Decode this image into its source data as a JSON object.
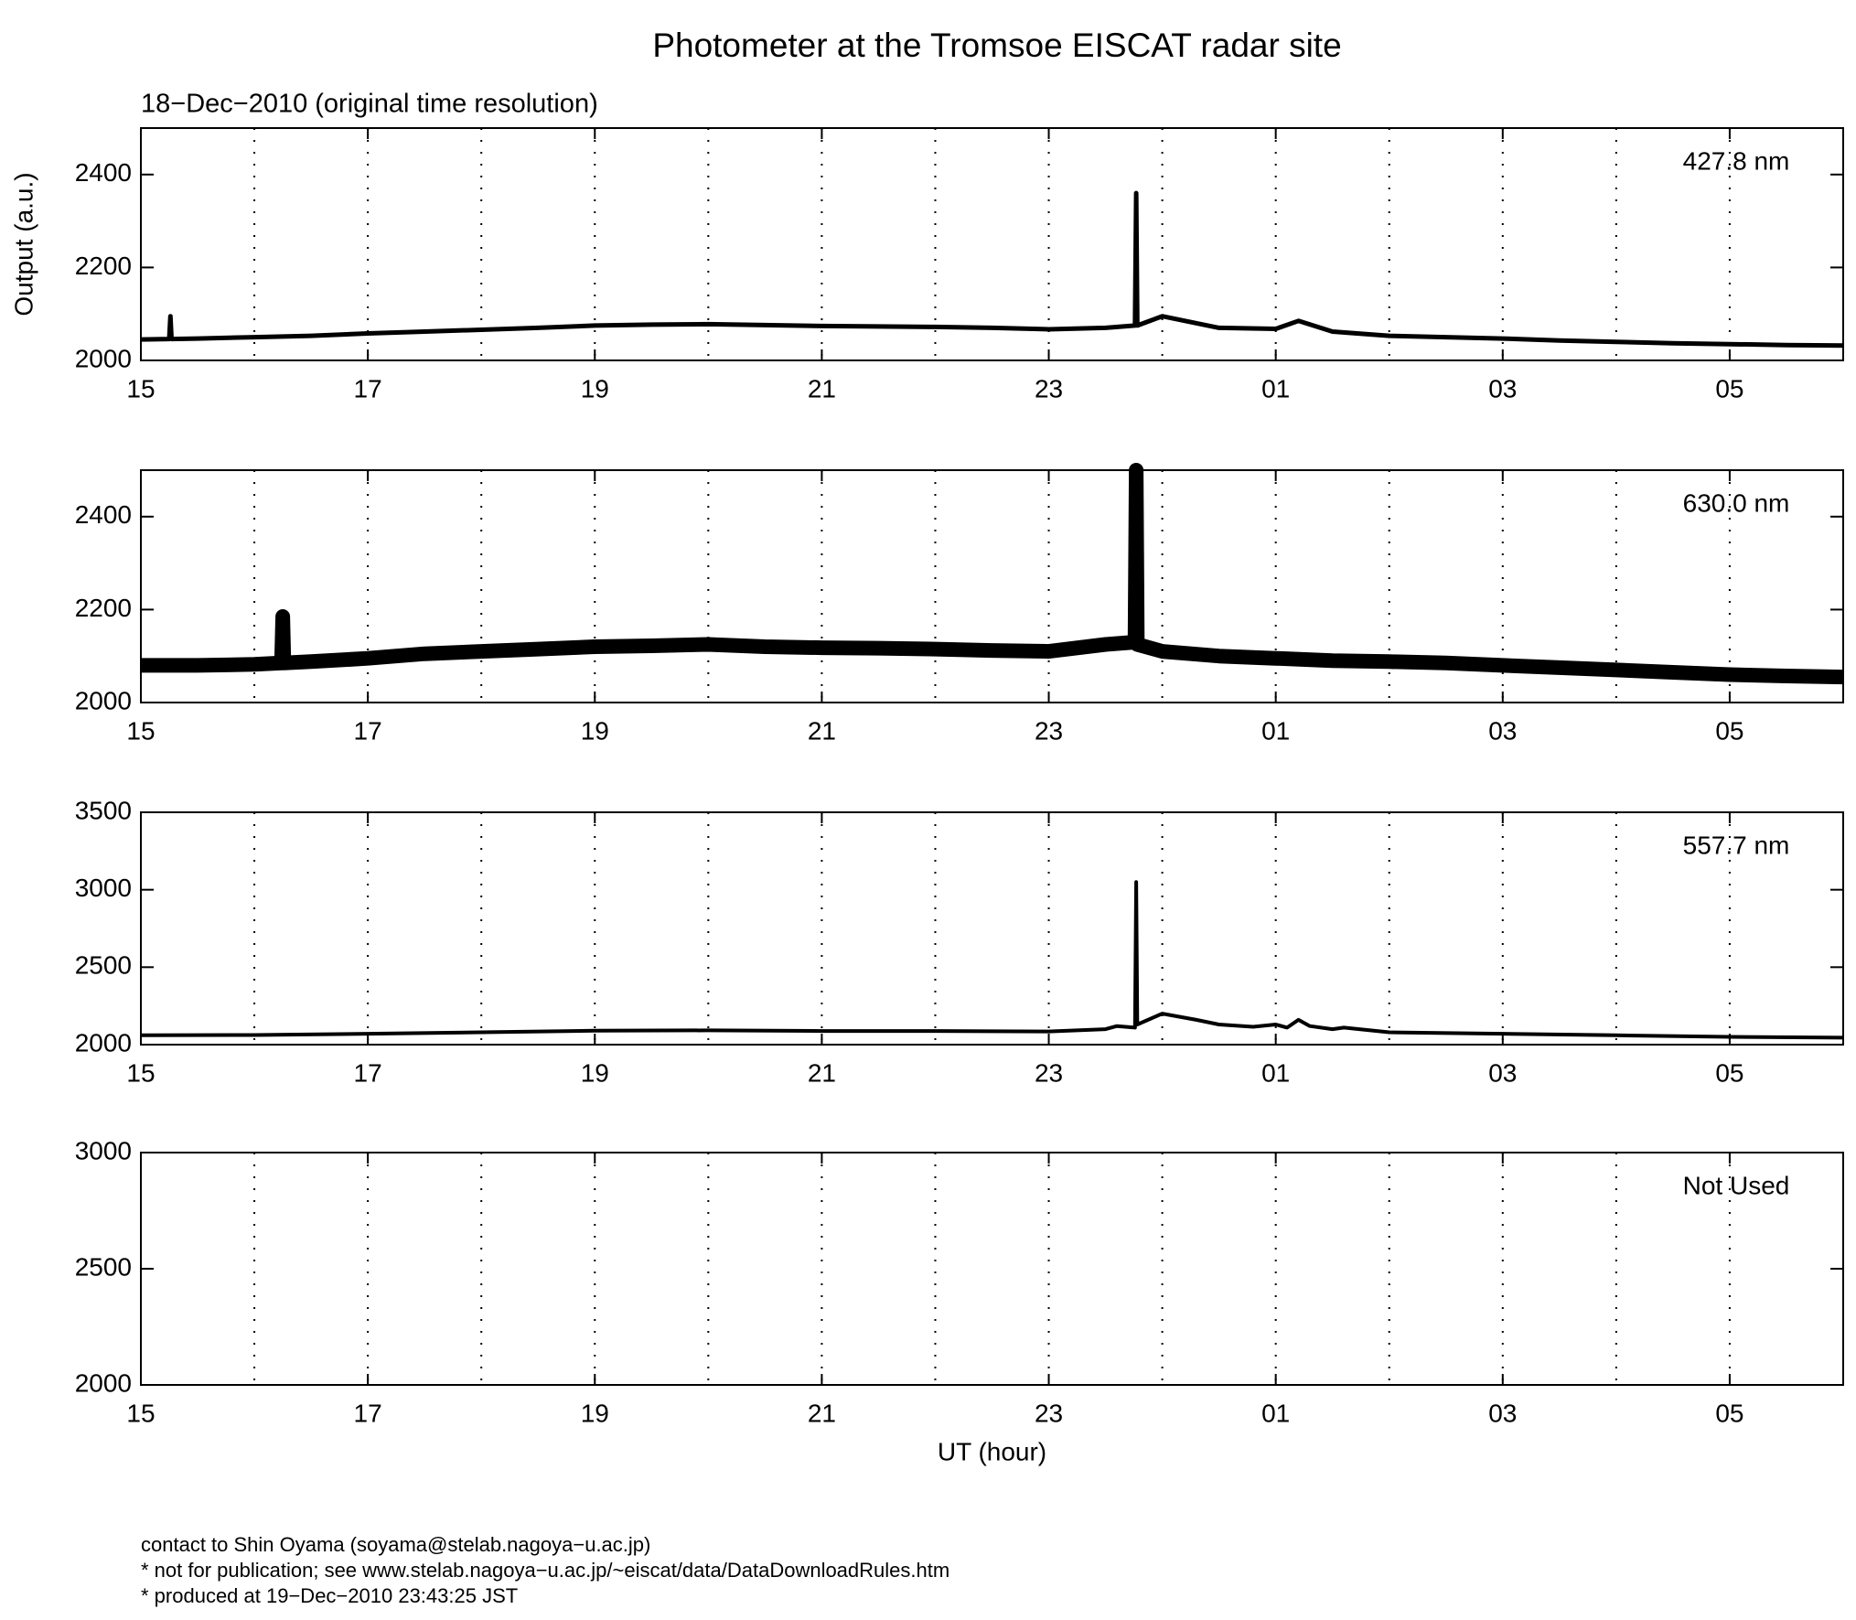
{
  "title": "Photometer at the Tromsoe EISCAT radar site",
  "subtitle": "18−Dec−2010 (original time resolution)",
  "footer": [
    "contact to Shin Oyama (soyama@stelab.nagoya−u.ac.jp)",
    "* not for publication; see www.stelab.nagoya−u.ac.jp/~eiscat/data/DataDownloadRules.htm",
    "* produced at 19−Dec−2010 23:43:25 JST"
  ],
  "chart_data": [
    {
      "type": "line",
      "annotation": "427.8 nm",
      "ylabel": "Output (a.u.)",
      "color": "#000000",
      "grid": true,
      "xlim": [
        15,
        30
      ],
      "ylim": [
        2000,
        2500
      ],
      "yticks": [
        2000,
        2200,
        2400
      ],
      "xticks": [
        15,
        17,
        19,
        21,
        23,
        {
          "value": 25,
          "label": "01"
        },
        {
          "value": 27,
          "label": "03"
        },
        {
          "value": 29,
          "label": "05"
        }
      ],
      "minor_xticks": [
        16,
        18,
        20,
        22,
        24,
        26,
        28
      ],
      "x": [
        15,
        15.25,
        15.26,
        15.27,
        15.5,
        16,
        16.5,
        17,
        17.5,
        18,
        18.5,
        19,
        19.5,
        20,
        20.5,
        21,
        21.5,
        22,
        22.5,
        23,
        23.5,
        23.76,
        23.77,
        23.78,
        24,
        24.5,
        25,
        25.2,
        25.5,
        26,
        26.5,
        27,
        27.5,
        28,
        28.5,
        29,
        29.5,
        30
      ],
      "values": [
        2045,
        2046,
        2095,
        2046,
        2047,
        2050,
        2053,
        2058,
        2062,
        2066,
        2070,
        2075,
        2077,
        2078,
        2076,
        2074,
        2073,
        2072,
        2070,
        2067,
        2070,
        2075,
        2360,
        2075,
        2095,
        2070,
        2068,
        2085,
        2062,
        2053,
        2050,
        2047,
        2043,
        2040,
        2037,
        2035,
        2033,
        2032
      ]
    },
    {
      "type": "line",
      "annotation": "630.0 nm",
      "color": "#000000",
      "grid": true,
      "xlim": [
        15,
        30
      ],
      "ylim": [
        2000,
        2500
      ],
      "yticks": [
        2000,
        2200,
        2400
      ],
      "xticks": [
        15,
        17,
        19,
        21,
        23,
        {
          "value": 25,
          "label": "01"
        },
        {
          "value": 27,
          "label": "03"
        },
        {
          "value": 29,
          "label": "05"
        }
      ],
      "minor_xticks": [
        16,
        18,
        20,
        22,
        24,
        26,
        28
      ],
      "x": [
        15,
        15.5,
        16,
        16.24,
        16.25,
        16.26,
        16.5,
        17,
        17.5,
        18,
        18.5,
        19,
        19.5,
        20,
        20.5,
        21,
        21.5,
        22,
        22.5,
        23,
        23.5,
        23.76,
        23.77,
        23.78,
        24,
        24.5,
        25,
        25.5,
        26,
        26.5,
        27,
        27.5,
        28,
        28.5,
        29,
        29.5,
        30
      ],
      "values": [
        2080,
        2080,
        2082,
        2085,
        2185,
        2085,
        2088,
        2095,
        2105,
        2110,
        2115,
        2120,
        2122,
        2125,
        2120,
        2118,
        2117,
        2115,
        2112,
        2110,
        2125,
        2130,
        2500,
        2125,
        2110,
        2100,
        2095,
        2090,
        2088,
        2085,
        2080,
        2075,
        2070,
        2065,
        2060,
        2057,
        2055
      ]
    },
    {
      "type": "line",
      "annotation": "557.7 nm",
      "color": "#000000",
      "grid": true,
      "xlim": [
        15,
        30
      ],
      "ylim": [
        2000,
        3500
      ],
      "yticks": [
        2000,
        2500,
        3000,
        3500
      ],
      "xticks": [
        15,
        17,
        19,
        21,
        23,
        {
          "value": 25,
          "label": "01"
        },
        {
          "value": 27,
          "label": "03"
        },
        {
          "value": 29,
          "label": "05"
        }
      ],
      "minor_xticks": [
        16,
        18,
        20,
        22,
        24,
        26,
        28
      ],
      "x": [
        15,
        16,
        17,
        18,
        19,
        20,
        21,
        22,
        23,
        23.5,
        23.6,
        23.76,
        23.77,
        23.78,
        24,
        24.3,
        24.5,
        24.8,
        25,
        25.1,
        25.2,
        25.3,
        25.5,
        25.6,
        26,
        27,
        28,
        29,
        30
      ],
      "values": [
        2060,
        2062,
        2070,
        2080,
        2090,
        2092,
        2088,
        2088,
        2085,
        2100,
        2120,
        2110,
        3050,
        2130,
        2200,
        2160,
        2130,
        2115,
        2130,
        2110,
        2160,
        2120,
        2100,
        2110,
        2080,
        2070,
        2060,
        2050,
        2045
      ]
    },
    {
      "type": "line",
      "annotation": "Not Used",
      "xlabel": "UT (hour)",
      "color": "#000000",
      "grid": true,
      "xlim": [
        15,
        30
      ],
      "ylim": [
        2000,
        3000
      ],
      "yticks": [
        2000,
        2500,
        3000
      ],
      "xticks": [
        15,
        17,
        19,
        21,
        23,
        {
          "value": 25,
          "label": "01"
        },
        {
          "value": 27,
          "label": "03"
        },
        {
          "value": 29,
          "label": "05"
        }
      ],
      "minor_xticks": [
        16,
        18,
        20,
        22,
        24,
        26,
        28
      ]
    }
  ]
}
